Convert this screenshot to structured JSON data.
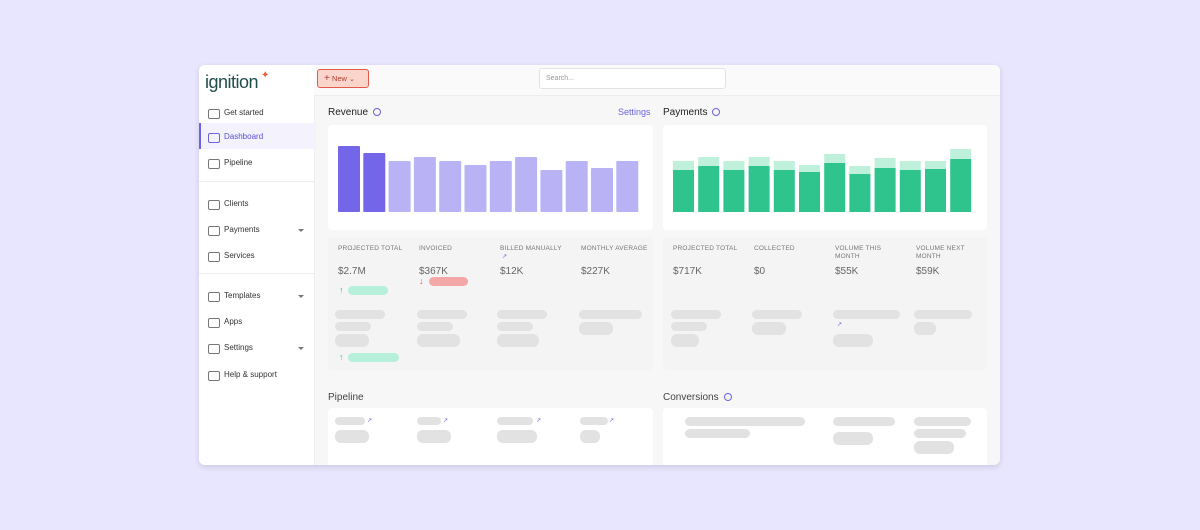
{
  "sidebar": {
    "logo": "ignition",
    "items": [
      "Get started",
      "Dashboard",
      "Pipeline",
      "Clients",
      "Payments",
      "Services",
      "Templates",
      "Apps",
      "Settings",
      "Help & support"
    ]
  },
  "topbar": {
    "new_button": "New",
    "search_placeholder": "Search..."
  },
  "revenue": {
    "title": "Revenue",
    "link": "Settings",
    "chart_data": {
      "type": "bar",
      "values": [
        66,
        59,
        51,
        55,
        51,
        47,
        51,
        55,
        42,
        51,
        44,
        51
      ],
      "colors": [
        "#7466e8",
        "#7466e8",
        "#b9b3f5",
        "#b9b3f5",
        "#b9b3f5",
        "#b9b3f5",
        "#b9b3f5",
        "#b9b3f5",
        "#b9b3f5",
        "#b9b3f5",
        "#b9b3f5",
        "#b9b3f5"
      ]
    },
    "stats": [
      {
        "label": "PROJECTED TOTAL",
        "value": "$2.7M"
      },
      {
        "label": "INVOICED",
        "value": "$367K"
      },
      {
        "label": "BILLED MANUALLY",
        "value": "$12K"
      },
      {
        "label": "MONTHLY AVERAGE",
        "value": "$227K"
      }
    ]
  },
  "payments": {
    "title": "Payments",
    "chart_data": {
      "type": "stacked-bar",
      "series": [
        {
          "color": "#2fc48e",
          "values": [
            42,
            46,
            42,
            46,
            42,
            40,
            49,
            38,
            44,
            42,
            43,
            53
          ]
        },
        {
          "color": "#bff0dc",
          "values": [
            9,
            9,
            9,
            9,
            9,
            7,
            9,
            8,
            10,
            9,
            8,
            10
          ]
        }
      ]
    },
    "stats": [
      {
        "label": "PROJECTED TOTAL",
        "value": "$717K"
      },
      {
        "label": "COLLECTED",
        "value": "$0"
      },
      {
        "label": "VOLUME THIS MONTH",
        "value": "$55K"
      },
      {
        "label": "VOLUME NEXT MONTH",
        "value": "$59K"
      }
    ]
  },
  "pipeline": {
    "title": "Pipeline"
  },
  "conversions": {
    "title": "Conversions"
  }
}
